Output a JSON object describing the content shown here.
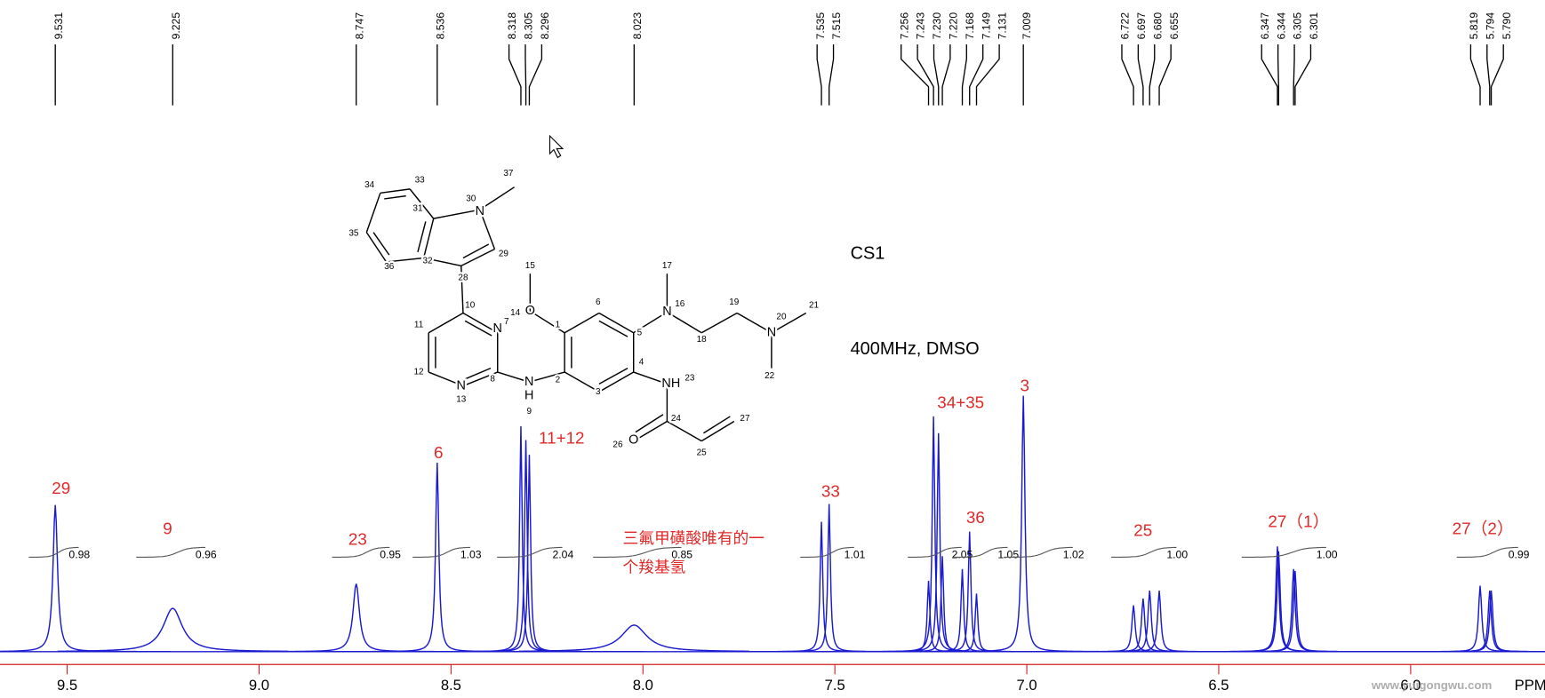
{
  "chart_data": {
    "type": "nmr",
    "title": "CS1",
    "subtitle": "400MHz, DMSO",
    "xlabel": "PPM",
    "watermark": "www.yuigongwu.com",
    "xlim": [
      9.675,
      5.65
    ],
    "xticks": [
      9.5,
      {
        "value": 9.0,
        "label": "9.0"
      },
      8.5,
      {
        "value": 8.0,
        "label": "8.0"
      },
      7.5,
      {
        "value": 7.0,
        "label": "7.0"
      },
      6.5,
      {
        "value": 6.0,
        "label": "6.0"
      }
    ],
    "ylim": [
      0,
      280
    ],
    "color": "#1a1ad0",
    "axis_color": "#d02020",
    "shifts": [
      9.531,
      9.225,
      8.747,
      8.536,
      8.318,
      8.305,
      8.296,
      8.023,
      7.535,
      7.515,
      7.256,
      7.243,
      {
        "value": 7.23,
        "label": "7.230"
      },
      {
        "value": 7.22,
        "label": "7.220"
      },
      7.168,
      7.149,
      7.131,
      7.009,
      6.722,
      6.697,
      {
        "value": 6.68,
        "label": "6.680"
      },
      6.655,
      6.347,
      6.344,
      6.305,
      6.301,
      5.819,
      5.794,
      {
        "value": 5.79,
        "label": "5.790"
      }
    ],
    "intensities": [
      149,
      44,
      69,
      192,
      229,
      215,
      200,
      27,
      132,
      150,
      72,
      239,
      222,
      97,
      84,
      122,
      59,
      260,
      47,
      54,
      62,
      62,
      107,
      102,
      84,
      82,
      67,
      62,
      62
    ],
    "linewidths": [
      0.007,
      0.03,
      0.01,
      0.005,
      0.004,
      0.004,
      0.004,
      0.04,
      0.004,
      0.004,
      0.004,
      0.004,
      0.004,
      0.004,
      0.004,
      0.004,
      0.004,
      0.005,
      0.005,
      0.005,
      0.005,
      0.005,
      0.005,
      0.005,
      0.005,
      0.005,
      0.005,
      0.005,
      0.005
    ],
    "integrals": [
      {
        "from": 9.6,
        "to": 9.47,
        "value": 0.98
      },
      {
        "from": 9.32,
        "to": 9.14,
        "value": 0.96
      },
      {
        "from": 8.81,
        "to": 8.66,
        "value": 0.95
      },
      {
        "from": 8.6,
        "to": 8.45,
        "value": 1.03
      },
      {
        "from": 8.38,
        "to": 8.21,
        "value": 2.04
      },
      {
        "from": 8.13,
        "to": 7.9,
        "value": 0.85
      },
      {
        "from": 7.59,
        "to": 7.45,
        "value": 1.01
      },
      {
        "from": 7.31,
        "to": 7.17,
        "value": 2.05
      },
      {
        "from": 7.19,
        "to": 7.05,
        "value": 1.05
      },
      {
        "from": 7.06,
        "to": 6.88,
        "value": 1.02
      },
      {
        "from": 6.78,
        "to": 6.61,
        "value": 1.0,
        "label": "1.00"
      },
      {
        "from": 6.44,
        "to": 6.22,
        "value": 1.0,
        "label": "1.00"
      },
      {
        "from": 5.88,
        "to": 5.72,
        "value": 0.99
      }
    ],
    "assignments": [
      "29",
      "9",
      "23",
      "6",
      "11+12",
      "33",
      "34+35",
      "36",
      "3",
      "25",
      "27（1）",
      "27（2）"
    ],
    "note": [
      "三氟甲磺酸唯有的一",
      "个羧基氢"
    ]
  },
  "structure": {
    "labels": [
      "N",
      "30",
      "37",
      "33",
      "34",
      "35",
      "36",
      "32",
      "31",
      "29",
      "28",
      "10",
      "N",
      "7",
      "11",
      "12",
      "N",
      "13",
      "8",
      "N",
      "H",
      "9",
      "O",
      "14",
      "15",
      "1",
      "6",
      "5",
      "4",
      "3",
      "2",
      "N",
      "16",
      "17",
      "18",
      "19",
      "N",
      "20",
      "21",
      "22",
      "NH",
      "23",
      "24",
      "O",
      "26",
      "25",
      "27"
    ]
  }
}
